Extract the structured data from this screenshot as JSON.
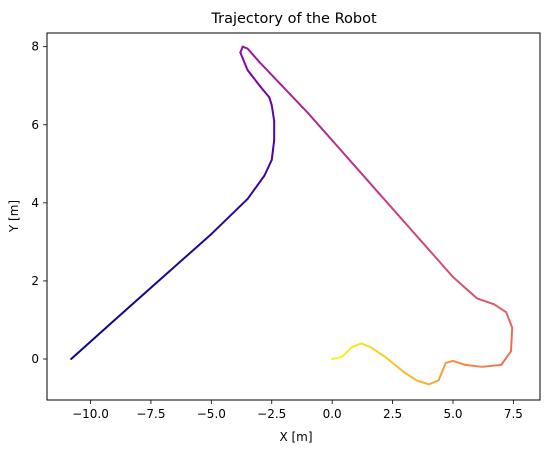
{
  "chart_data": {
    "type": "line",
    "title": "Trajectory of the Robot",
    "xlabel": "X [m]",
    "ylabel": "Y [m]",
    "xlim": [
      -11.8,
      8.6
    ],
    "ylim": [
      -1.05,
      8.35
    ],
    "xticks": [
      -10.0,
      -7.5,
      -5.0,
      -2.5,
      0.0,
      2.5,
      5.0,
      7.5
    ],
    "xtick_labels": [
      "−10.0",
      "−7.5",
      "−5.0",
      "−2.5",
      "0.0",
      "2.5",
      "5.0",
      "7.5"
    ],
    "yticks": [
      0,
      2,
      4,
      6,
      8
    ],
    "ytick_labels": [
      "0",
      "2",
      "4",
      "6",
      "8"
    ],
    "grid": false,
    "colormap": "plasma",
    "color_order": "by time: start dark purple to end yellow",
    "colors": {
      "start": "#0d0887",
      "mid": "#cc4778",
      "end": "#f0f921"
    },
    "series": [
      {
        "x": [
          -10.8,
          -9.0,
          -7.0,
          -5.0,
          -3.5,
          -2.8,
          -2.5,
          -2.4,
          -2.4,
          -2.5,
          -2.6,
          -3.0,
          -3.5,
          -3.8,
          -3.7,
          -3.5,
          -3.0,
          -2.0,
          -1.0,
          0.0,
          1.0,
          2.0,
          3.0,
          4.0,
          5.0,
          6.0,
          6.7,
          7.2,
          7.45,
          7.4,
          7.0,
          6.2,
          5.5,
          5.0,
          4.7,
          4.4,
          4.0,
          3.5,
          3.0,
          2.6,
          2.2,
          1.6,
          1.2,
          0.8,
          0.4,
          0.0
        ],
        "y": [
          0.0,
          1.0,
          2.1,
          3.2,
          4.1,
          4.7,
          5.1,
          5.6,
          6.1,
          6.5,
          6.7,
          7.0,
          7.4,
          7.85,
          8.0,
          7.95,
          7.6,
          6.95,
          6.3,
          5.6,
          4.9,
          4.2,
          3.5,
          2.8,
          2.1,
          1.55,
          1.4,
          1.2,
          0.8,
          0.2,
          -0.15,
          -0.2,
          -0.15,
          -0.05,
          -0.1,
          -0.55,
          -0.65,
          -0.55,
          -0.35,
          -0.15,
          0.05,
          0.3,
          0.4,
          0.3,
          0.05,
          0.0
        ]
      }
    ]
  }
}
